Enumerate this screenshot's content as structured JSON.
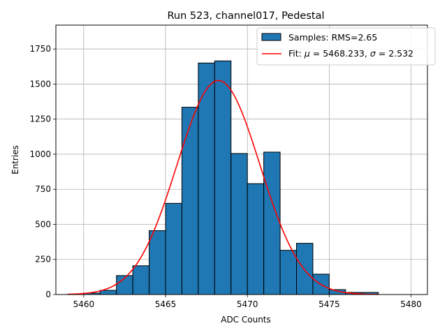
{
  "chart_data": {
    "type": "bar",
    "title": "Run 523, channel017, Pedestal",
    "xlabel": "ADC Counts",
    "ylabel": "Entries",
    "xlim": [
      5458.3,
      5481.0
    ],
    "ylim": [
      0,
      1920
    ],
    "xticks": [
      5460,
      5465,
      5470,
      5475,
      5480
    ],
    "yticks": [
      0,
      250,
      500,
      750,
      1000,
      1250,
      1500,
      1750
    ],
    "grid": true,
    "legend_position": "top-right",
    "histogram": {
      "name": "Samples: RMS=2.65",
      "color": "#1f77b4",
      "edgecolor": "#000000",
      "bin_edges": [
        5460,
        5461,
        5462,
        5463,
        5464,
        5465,
        5466,
        5467,
        5468,
        5469,
        5470,
        5471,
        5472,
        5473,
        5474,
        5475,
        5476,
        5477,
        5478
      ],
      "counts": [
        10,
        30,
        135,
        205,
        455,
        650,
        1335,
        1650,
        1665,
        1005,
        790,
        1015,
        315,
        365,
        145,
        35,
        15,
        15
      ]
    },
    "fit": {
      "name_prefix": "Fit: ",
      "mu_label": "μ",
      "mu_value": "5468.233",
      "sigma_label": "σ",
      "sigma_value": "2.532",
      "mu": 5468.233,
      "sigma": 2.532,
      "amplitude": 1525,
      "x_range": [
        5459,
        5478
      ],
      "color": "#ff0000"
    }
  }
}
